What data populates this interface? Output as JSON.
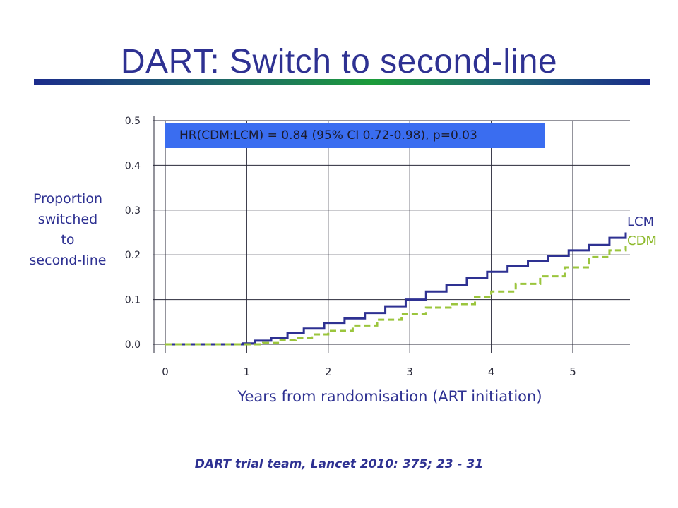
{
  "chart_data": {
    "type": "line",
    "title": "DART: Switch to second-line",
    "xlabel": "Years from randomisation (ART initiation)",
    "ylabel": "Proportion\nswitched\nto\nsecond-line",
    "xlim": [
      0,
      5.7
    ],
    "ylim": [
      0,
      0.5
    ],
    "xticks": [
      "0",
      "1",
      "2",
      "3",
      "4",
      "5"
    ],
    "yticks": [
      "0.0",
      "0.1",
      "0.2",
      "0.3",
      "0.4",
      "0.5"
    ],
    "grid": "horizontal",
    "annotation": "HR(CDM:LCM) = 0.84 (95% CI 0.72-0.98), p=0.03",
    "series": [
      {
        "name": "LCM",
        "color": "#2e3192",
        "style": "solid",
        "x": [
          0,
          0.7,
          0.95,
          1.1,
          1.3,
          1.5,
          1.7,
          1.95,
          2.2,
          2.45,
          2.7,
          2.95,
          3.2,
          3.45,
          3.7,
          3.95,
          4.2,
          4.45,
          4.7,
          4.95,
          5.2,
          5.45,
          5.65
        ],
        "y": [
          0,
          0,
          0.002,
          0.008,
          0.015,
          0.025,
          0.035,
          0.048,
          0.058,
          0.07,
          0.085,
          0.1,
          0.118,
          0.132,
          0.148,
          0.162,
          0.175,
          0.187,
          0.198,
          0.21,
          0.222,
          0.238,
          0.25
        ]
      },
      {
        "name": "CDM",
        "color": "#9bc53d",
        "style": "dashed",
        "x": [
          0,
          1.0,
          1.2,
          1.4,
          1.6,
          1.8,
          2.0,
          2.3,
          2.6,
          2.9,
          3.2,
          3.5,
          3.8,
          4.0,
          4.3,
          4.6,
          4.9,
          5.2,
          5.45,
          5.65
        ],
        "y": [
          0,
          0,
          0.003,
          0.01,
          0.015,
          0.022,
          0.03,
          0.042,
          0.055,
          0.068,
          0.082,
          0.09,
          0.105,
          0.118,
          0.135,
          0.152,
          0.172,
          0.195,
          0.21,
          0.22
        ]
      }
    ]
  },
  "citation": "DART trial team, Lancet 2010: 375; 23 - 31"
}
